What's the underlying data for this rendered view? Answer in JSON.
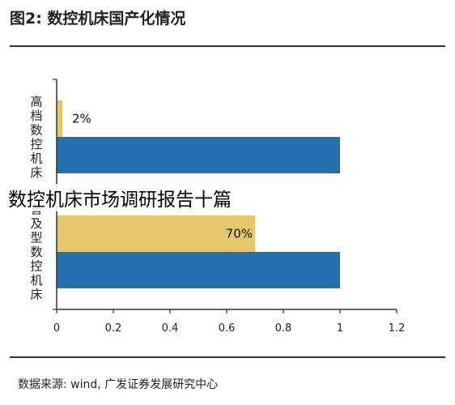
{
  "figure": {
    "title": "图2:  数控机床国产化情况",
    "source": "数据来源: wind, 广发证券发展研究中心"
  },
  "overlay_text": "数控机床市场调研报告十篇",
  "colors": {
    "bar_yellow": "#e5c86b",
    "bar_blue": "#2470ad",
    "axis": "#333333"
  },
  "chart_data": {
    "type": "bar",
    "orientation": "horizontal",
    "categories": [
      "高档数控机床",
      "普及型数控机床"
    ],
    "series": [
      {
        "values": [
          0.02,
          0.7
        ],
        "color": "#e5c86b",
        "data_labels": [
          "2%",
          "70%"
        ]
      },
      {
        "values": [
          1,
          1
        ],
        "color": "#2470ad"
      }
    ],
    "xlim": [
      0,
      1.2
    ],
    "xticks": [
      "0",
      "0.2",
      "0.4",
      "0.6",
      "0.8",
      "1",
      "1.2"
    ],
    "title": "",
    "xlabel": "",
    "ylabel": "",
    "grid": false,
    "legend": "none"
  }
}
